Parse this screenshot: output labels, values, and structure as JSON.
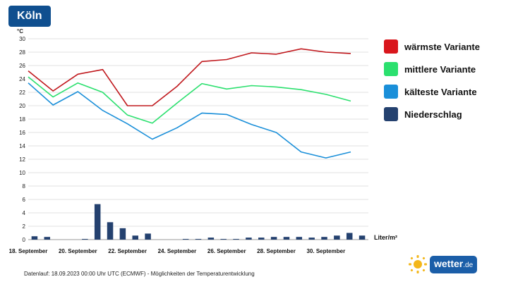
{
  "city": "Köln",
  "footer": "Datenlauf: 18.09.2023 00:00 Uhr UTC (ECMWF) - Möglichkeiten der Temperaturentwicklung",
  "logo": {
    "name": "wetter",
    "tld": ".de",
    "icon": "sun-icon"
  },
  "chart_data": {
    "type": "line",
    "title": "",
    "ylabel": "°C",
    "precip_unit": "Liter/m²",
    "ylim": [
      0,
      30
    ],
    "y_ticks": [
      0,
      2,
      4,
      6,
      8,
      10,
      12,
      14,
      16,
      18,
      20,
      22,
      24,
      26,
      28,
      30
    ],
    "x_tick_labels": [
      "18. September",
      "20. September",
      "22. September",
      "24. September",
      "26. September",
      "28. September",
      "30. September"
    ],
    "grid": true,
    "legend_position": "right",
    "series": [
      {
        "name": "wärmste Variante",
        "color": "#c0181d",
        "values": [
          25.2,
          22.2,
          24.7,
          25.4,
          20.0,
          20.0,
          22.9,
          26.6,
          26.9,
          27.9,
          27.7,
          28.5,
          28.0,
          27.8
        ]
      },
      {
        "name": "mittlere Variante",
        "color": "#2be06e",
        "values": [
          24.3,
          21.3,
          23.4,
          22.0,
          18.6,
          17.4,
          20.4,
          23.3,
          22.5,
          23.0,
          22.8,
          22.4,
          21.7,
          20.7
        ]
      },
      {
        "name": "kälteste Variante",
        "color": "#1a8fd9",
        "values": [
          23.4,
          20.1,
          22.1,
          19.3,
          17.3,
          15.0,
          16.7,
          18.9,
          18.7,
          17.2,
          16.0,
          13.1,
          12.2,
          13.1
        ]
      }
    ],
    "precipitation": {
      "name": "Niederschlag",
      "color": "#24416f",
      "values": [
        0.5,
        0.4,
        0.0,
        0.0,
        0.1,
        5.3,
        2.6,
        1.7,
        0.6,
        0.9,
        0.0,
        0.0,
        0.1,
        0.1,
        0.3,
        0.1,
        0.1,
        0.3,
        0.3,
        0.4,
        0.4,
        0.4,
        0.3,
        0.4,
        0.6,
        1.0,
        0.6
      ]
    }
  }
}
